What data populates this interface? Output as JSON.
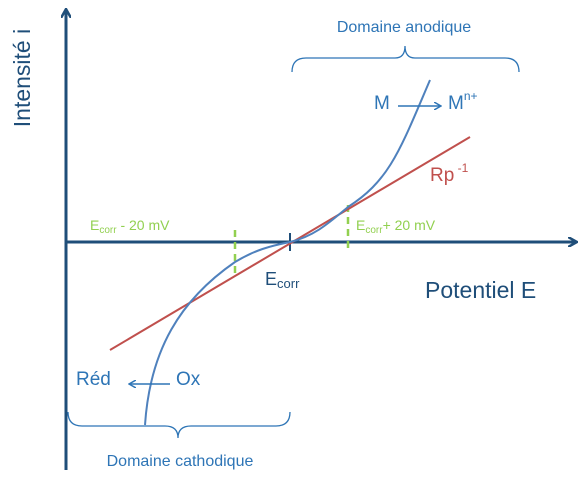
{
  "axes": {
    "y_label": "Intensité i",
    "x_label": "Potentiel E"
  },
  "domains": {
    "anodic": "Domaine anodique",
    "cathodic": "Domaine cathodique"
  },
  "anodic_reaction": {
    "left": "M",
    "right": {
      "base": "M",
      "sup": "n+"
    }
  },
  "cathodic_reaction": {
    "left": "Réd",
    "right": "Ox"
  },
  "rp": {
    "base": "Rp",
    "sup": " -1"
  },
  "ecorr": {
    "base": "E",
    "sub": "corr"
  },
  "ecorr_minus": {
    "base": "E",
    "sub": "corr",
    "rest": " - 20 mV"
  },
  "ecorr_plus": {
    "base": "E",
    "sub": "corr",
    "rest": "+ 20 mV"
  }
}
